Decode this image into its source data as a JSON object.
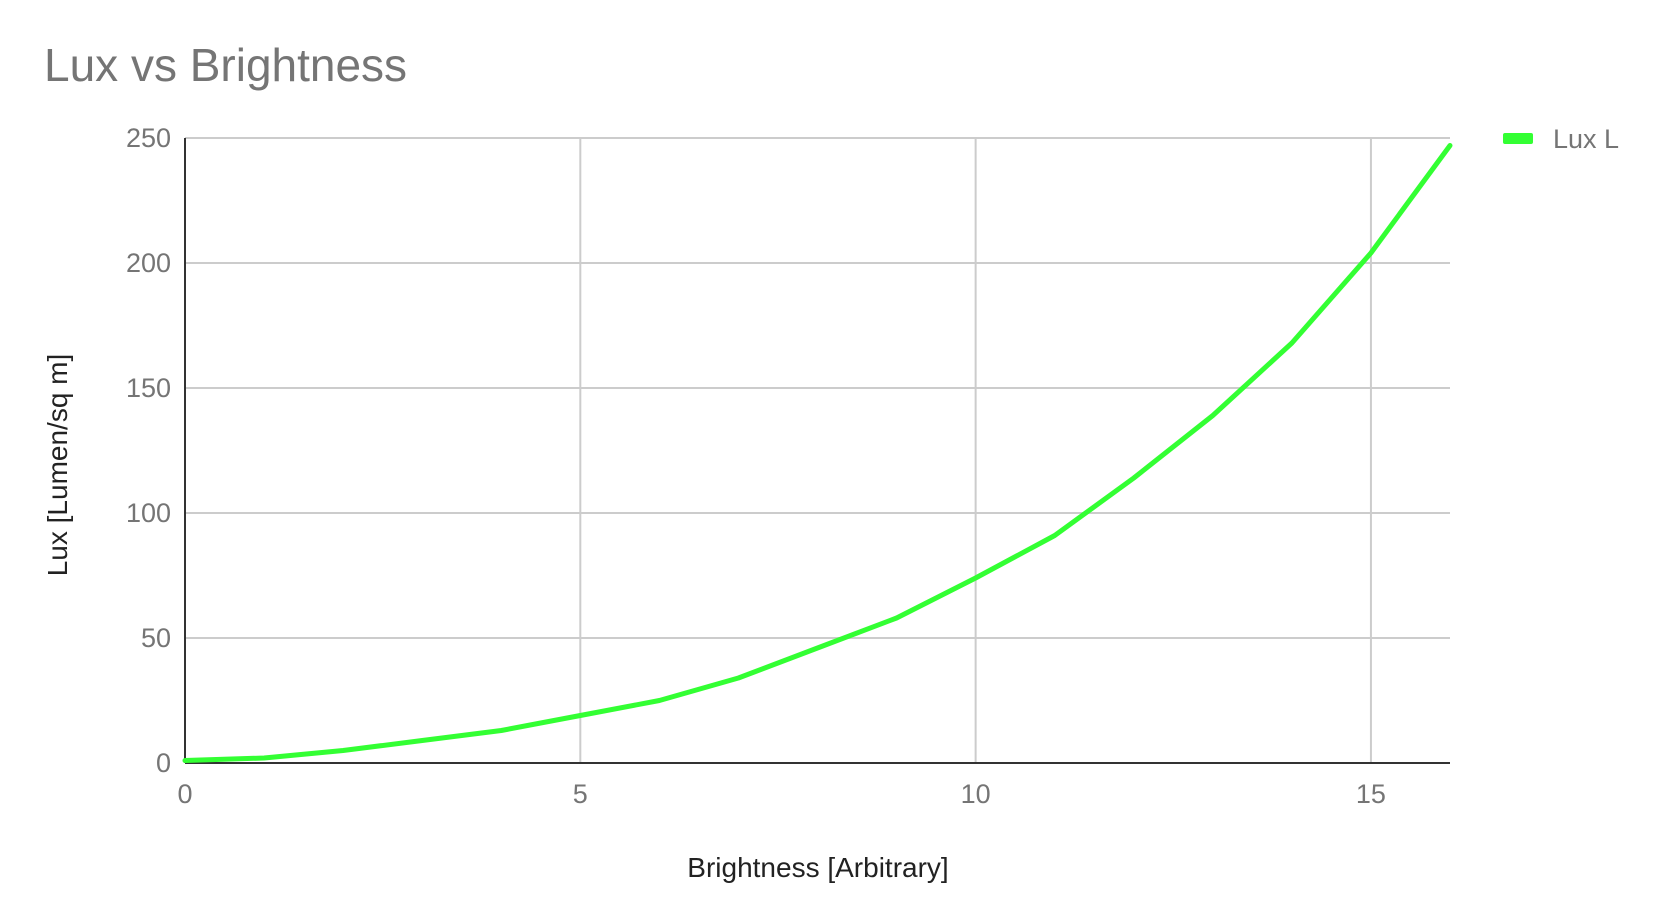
{
  "chart_data": {
    "type": "line",
    "title": "Lux vs Brightness",
    "xlabel": "Brightness [Arbitrary]",
    "ylabel": "Lux [Lumen/sq m]",
    "xlim": [
      0,
      16
    ],
    "ylim": [
      0,
      250
    ],
    "xticks": [
      0,
      5,
      10,
      15
    ],
    "yticks": [
      0,
      50,
      100,
      150,
      200,
      250
    ],
    "grid": true,
    "legend_position": "top-right",
    "x": [
      0,
      1,
      2,
      3,
      4,
      5,
      6,
      7,
      8,
      9,
      10,
      11,
      12,
      13,
      14,
      15,
      16
    ],
    "series": [
      {
        "name": "Lux L",
        "color": "#33ff33",
        "values": [
          1,
          2,
          5,
          9,
          13,
          19,
          25,
          34,
          46,
          58,
          74,
          91,
          114,
          139,
          168,
          204,
          247
        ]
      }
    ]
  }
}
